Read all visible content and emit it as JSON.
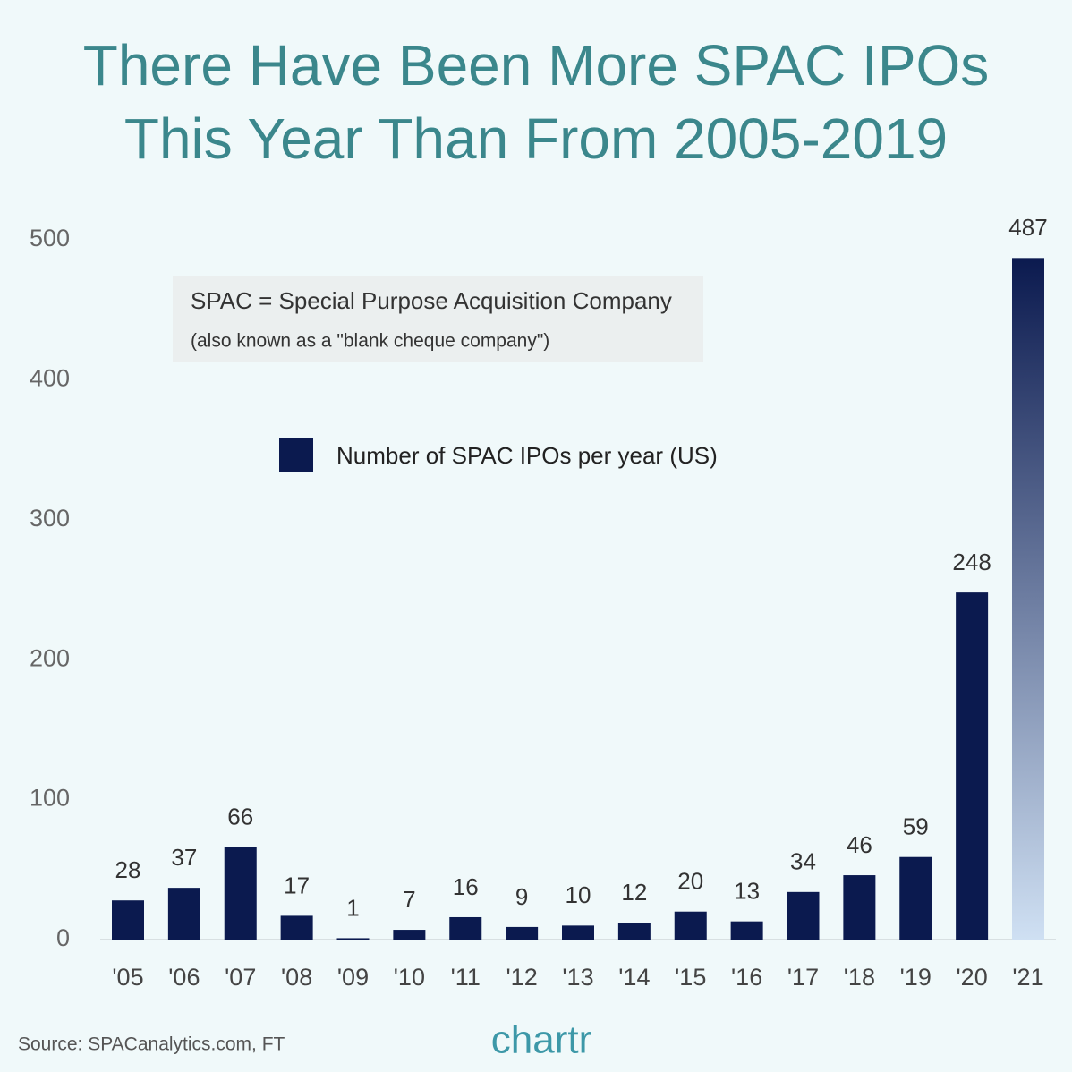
{
  "chart_data": {
    "type": "bar",
    "title": [
      "There Have Been More SPAC IPOs",
      "This Year Than From 2005-2019"
    ],
    "annotation": "SPAC = Special Purpose Acquisition Company",
    "annotation_note": "(also known as a \"blank cheque company\")",
    "source": "Source: SPACanalytics.com, FT",
    "brand": "chartr",
    "categories": [
      "'05",
      "'06",
      "'07",
      "'08",
      "'09",
      "'10",
      "'11",
      "'12",
      "'13",
      "'14",
      "'15",
      "'16",
      "'17",
      "'18",
      "'19",
      "'20",
      "'21"
    ],
    "series": [
      {
        "name": "Number of SPAC IPOs per year (US)",
        "color": "#0b1a4f",
        "values": [
          28,
          37,
          66,
          17,
          1,
          7,
          16,
          9,
          10,
          12,
          20,
          13,
          34,
          46,
          59,
          248,
          487
        ]
      }
    ],
    "last_bar_gradient": [
      "#0b1a4f",
      "#cfe0f3"
    ],
    "ylim": [
      0,
      500
    ],
    "yticks": [
      0,
      100,
      200,
      300,
      400,
      500
    ],
    "grid": false
  }
}
